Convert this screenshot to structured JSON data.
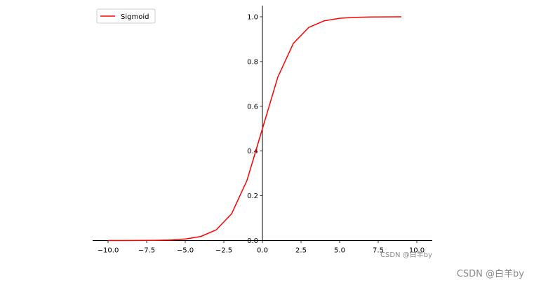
{
  "chart_data": {
    "type": "line",
    "title": "",
    "xlabel": "",
    "ylabel": "",
    "x": [
      -10,
      -9,
      -8,
      -7,
      -6,
      -5,
      -4,
      -3,
      -2,
      -1,
      0,
      1,
      2,
      3,
      4,
      5,
      6,
      7,
      8,
      9
    ],
    "series": [
      {
        "name": "Sigmoid",
        "color": "#ff0000",
        "values": [
          4.54e-05,
          0.0001234,
          0.0003354,
          0.0009111,
          0.0024726,
          0.0066929,
          0.0179862,
          0.0474259,
          0.1192029,
          0.2689414,
          0.5,
          0.7310586,
          0.8807971,
          0.9525741,
          0.9820138,
          0.9933071,
          0.9975274,
          0.9990889,
          0.9996646,
          0.9998766
        ]
      }
    ],
    "xlim": [
      -11,
      11
    ],
    "ylim": [
      0,
      1.05
    ],
    "xticks": [
      -10,
      -7.5,
      -5,
      -2.5,
      0,
      2.5,
      5,
      7.5,
      10
    ],
    "xtick_labels": [
      "−10.0",
      "−7.5",
      "−5.0",
      "−2.5",
      "0.0",
      "2.5",
      "5.0",
      "7.5",
      "10.0"
    ],
    "yticks": [
      0,
      0.2,
      0.4,
      0.6,
      0.8,
      1.0
    ],
    "ytick_labels": [
      "0.0",
      "0.2",
      "0.4",
      "0.6",
      "0.8",
      "1.0"
    ],
    "spines": "centered at origin",
    "legend": {
      "position": "top-left",
      "entries": [
        "Sigmoid"
      ]
    },
    "grid": false
  },
  "watermarks": {
    "inner": "CSDN @白羊by",
    "outer": "CSDN @白羊by"
  }
}
